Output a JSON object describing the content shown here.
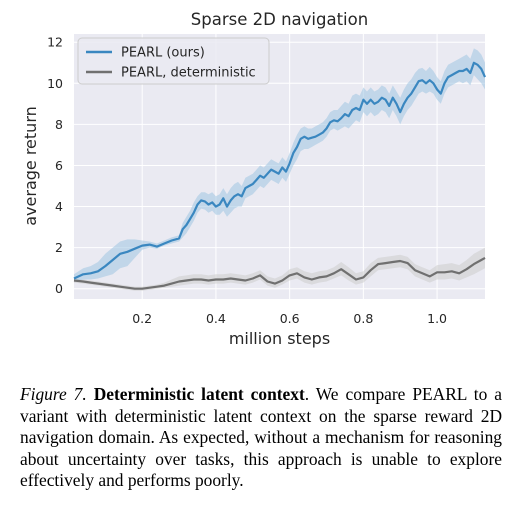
{
  "chart_data": {
    "type": "line",
    "title": "Sparse 2D navigation",
    "xlabel": "million steps",
    "ylabel": "average return",
    "xlim": [
      0.015,
      1.13
    ],
    "ylim": [
      -0.5,
      12.4
    ],
    "xticks": [
      0.2,
      0.4,
      0.6,
      0.8,
      1.0
    ],
    "xtick_labels": [
      "0.2",
      "0.4",
      "0.6",
      "0.8",
      "1.0"
    ],
    "yticks": [
      0,
      2,
      4,
      6,
      8,
      10,
      12
    ],
    "ytick_labels": [
      "0",
      "2",
      "4",
      "6",
      "8",
      "10",
      "12"
    ],
    "grid": true,
    "legend_position": "top-left",
    "background": "#eaeaf2",
    "series": [
      {
        "name": "PEARL (ours)",
        "color": "#3a87c0",
        "band_color": "#9fc4e2",
        "x": [
          0.015,
          0.04,
          0.06,
          0.08,
          0.1,
          0.12,
          0.14,
          0.16,
          0.18,
          0.2,
          0.22,
          0.24,
          0.26,
          0.28,
          0.3,
          0.31,
          0.32,
          0.33,
          0.34,
          0.35,
          0.36,
          0.37,
          0.38,
          0.39,
          0.4,
          0.41,
          0.42,
          0.43,
          0.44,
          0.45,
          0.46,
          0.47,
          0.48,
          0.49,
          0.5,
          0.51,
          0.52,
          0.53,
          0.54,
          0.55,
          0.56,
          0.57,
          0.58,
          0.59,
          0.6,
          0.61,
          0.62,
          0.63,
          0.64,
          0.65,
          0.66,
          0.67,
          0.68,
          0.69,
          0.7,
          0.71,
          0.72,
          0.73,
          0.74,
          0.75,
          0.76,
          0.77,
          0.78,
          0.79,
          0.8,
          0.81,
          0.82,
          0.83,
          0.84,
          0.85,
          0.86,
          0.87,
          0.88,
          0.89,
          0.9,
          0.91,
          0.92,
          0.93,
          0.94,
          0.95,
          0.96,
          0.97,
          0.98,
          0.99,
          1.0,
          1.01,
          1.02,
          1.03,
          1.04,
          1.05,
          1.06,
          1.07,
          1.08,
          1.09,
          1.1,
          1.11,
          1.12,
          1.13
        ],
        "y": [
          0.5,
          0.7,
          0.75,
          0.85,
          1.1,
          1.4,
          1.7,
          1.8,
          1.95,
          2.1,
          2.15,
          2.05,
          2.2,
          2.35,
          2.45,
          2.9,
          3.1,
          3.4,
          3.7,
          4.1,
          4.3,
          4.25,
          4.1,
          4.2,
          4.0,
          4.1,
          4.4,
          4.0,
          4.3,
          4.5,
          4.6,
          4.5,
          4.9,
          5.0,
          5.1,
          5.3,
          5.5,
          5.4,
          5.6,
          5.8,
          5.7,
          5.6,
          5.9,
          5.7,
          6.1,
          6.6,
          6.9,
          7.3,
          7.4,
          7.3,
          7.35,
          7.4,
          7.5,
          7.6,
          7.8,
          8.1,
          8.2,
          8.15,
          8.3,
          8.5,
          8.4,
          8.7,
          8.8,
          8.7,
          9.2,
          9.0,
          9.2,
          9.0,
          9.1,
          9.3,
          9.2,
          8.9,
          9.3,
          9.0,
          8.6,
          9.0,
          9.3,
          9.5,
          9.8,
          10.1,
          10.15,
          10.0,
          10.15,
          10.0,
          9.7,
          9.5,
          10.0,
          10.3,
          10.4,
          10.5,
          10.6,
          10.6,
          10.7,
          10.5,
          11.0,
          10.9,
          10.7,
          10.3
        ],
        "lower": [
          0.35,
          0.45,
          0.45,
          0.5,
          0.6,
          0.7,
          1.0,
          1.1,
          1.5,
          1.9,
          2.0,
          1.95,
          2.1,
          2.2,
          2.3,
          2.5,
          2.7,
          3.0,
          3.3,
          3.7,
          3.9,
          3.85,
          3.7,
          3.8,
          3.6,
          3.6,
          3.8,
          3.5,
          3.7,
          3.9,
          4.0,
          4.0,
          4.4,
          4.5,
          4.6,
          4.8,
          5.0,
          4.9,
          5.1,
          5.3,
          5.2,
          5.1,
          5.4,
          5.2,
          5.6,
          6.0,
          6.3,
          6.7,
          6.8,
          6.8,
          6.9,
          7.0,
          7.1,
          7.2,
          7.4,
          7.7,
          7.8,
          7.7,
          7.8,
          7.9,
          7.8,
          8.0,
          8.2,
          8.1,
          8.6,
          8.4,
          8.6,
          8.4,
          8.5,
          8.7,
          8.6,
          8.3,
          8.7,
          8.4,
          8.0,
          8.4,
          8.7,
          8.9,
          9.2,
          9.5,
          9.6,
          9.5,
          9.6,
          9.5,
          9.2,
          9.0,
          9.5,
          9.8,
          9.9,
          10.0,
          10.1,
          10.0,
          10.1,
          9.9,
          10.4,
          10.2,
          10.0,
          9.7
        ],
        "upper": [
          0.7,
          1.0,
          1.1,
          1.3,
          1.7,
          2.0,
          2.3,
          2.4,
          2.4,
          2.35,
          2.3,
          2.2,
          2.35,
          2.5,
          2.6,
          3.2,
          3.5,
          3.8,
          4.2,
          4.5,
          4.7,
          4.7,
          4.6,
          4.7,
          4.5,
          4.6,
          4.9,
          4.6,
          4.9,
          5.1,
          5.2,
          5.0,
          5.4,
          5.5,
          5.6,
          5.8,
          6.0,
          5.9,
          6.1,
          6.3,
          6.2,
          6.1,
          6.4,
          6.2,
          6.6,
          7.1,
          7.5,
          7.8,
          7.9,
          7.8,
          7.8,
          7.9,
          8.0,
          8.1,
          8.3,
          8.6,
          8.7,
          8.7,
          8.9,
          9.1,
          9.0,
          9.4,
          9.5,
          9.4,
          9.8,
          9.6,
          9.8,
          9.6,
          9.7,
          9.9,
          9.8,
          9.5,
          9.9,
          9.6,
          9.3,
          9.7,
          10.0,
          10.2,
          10.5,
          10.7,
          10.75,
          10.6,
          10.8,
          10.6,
          10.3,
          10.1,
          10.6,
          10.9,
          11.0,
          11.1,
          11.2,
          11.3,
          11.4,
          11.2,
          11.7,
          11.6,
          11.4,
          11.0
        ]
      },
      {
        "name": "PEARL, deterministic",
        "color": "#707070",
        "band_color": "#cccccc",
        "x": [
          0.015,
          0.04,
          0.06,
          0.08,
          0.1,
          0.12,
          0.14,
          0.16,
          0.18,
          0.2,
          0.22,
          0.24,
          0.26,
          0.28,
          0.3,
          0.32,
          0.34,
          0.36,
          0.38,
          0.4,
          0.42,
          0.44,
          0.46,
          0.48,
          0.5,
          0.52,
          0.54,
          0.56,
          0.58,
          0.6,
          0.62,
          0.64,
          0.66,
          0.68,
          0.7,
          0.72,
          0.74,
          0.76,
          0.78,
          0.8,
          0.82,
          0.84,
          0.86,
          0.88,
          0.9,
          0.92,
          0.94,
          0.96,
          0.98,
          1.0,
          1.02,
          1.04,
          1.06,
          1.08,
          1.1,
          1.12,
          1.13
        ],
        "y": [
          0.4,
          0.35,
          0.3,
          0.25,
          0.2,
          0.15,
          0.1,
          0.05,
          0.0,
          0.0,
          0.05,
          0.1,
          0.15,
          0.25,
          0.35,
          0.4,
          0.45,
          0.45,
          0.4,
          0.45,
          0.45,
          0.5,
          0.45,
          0.4,
          0.5,
          0.65,
          0.35,
          0.25,
          0.4,
          0.65,
          0.75,
          0.55,
          0.45,
          0.55,
          0.6,
          0.75,
          0.95,
          0.7,
          0.45,
          0.55,
          0.9,
          1.2,
          1.25,
          1.3,
          1.35,
          1.25,
          0.9,
          0.75,
          0.6,
          0.8,
          0.8,
          0.85,
          0.75,
          0.95,
          1.2,
          1.4,
          1.5
        ],
        "lower": [
          0.3,
          0.25,
          0.2,
          0.15,
          0.1,
          0.05,
          0.0,
          -0.05,
          -0.1,
          -0.1,
          -0.05,
          0.0,
          0.05,
          0.1,
          0.15,
          0.2,
          0.25,
          0.25,
          0.2,
          0.25,
          0.25,
          0.3,
          0.25,
          0.2,
          0.3,
          0.45,
          0.15,
          0.05,
          0.2,
          0.4,
          0.5,
          0.3,
          0.2,
          0.3,
          0.35,
          0.5,
          0.65,
          0.4,
          0.2,
          0.3,
          0.6,
          0.9,
          0.95,
          1.0,
          1.05,
          0.95,
          0.6,
          0.45,
          0.3,
          0.45,
          0.45,
          0.5,
          0.4,
          0.55,
          0.7,
          0.9,
          1.0
        ],
        "upper": [
          0.5,
          0.45,
          0.4,
          0.35,
          0.3,
          0.25,
          0.2,
          0.15,
          0.1,
          0.1,
          0.15,
          0.2,
          0.3,
          0.45,
          0.6,
          0.65,
          0.7,
          0.7,
          0.65,
          0.7,
          0.7,
          0.75,
          0.7,
          0.65,
          0.75,
          0.9,
          0.6,
          0.5,
          0.65,
          0.95,
          1.05,
          0.85,
          0.75,
          0.85,
          0.9,
          1.05,
          1.3,
          1.05,
          0.75,
          0.85,
          1.25,
          1.5,
          1.55,
          1.6,
          1.65,
          1.55,
          1.2,
          1.05,
          0.9,
          1.15,
          1.2,
          1.25,
          1.15,
          1.4,
          1.7,
          1.9,
          2.0
        ]
      }
    ]
  },
  "caption": {
    "label": "Figure 7.",
    "title": "Deterministic latent context",
    "text": ". We compare PEARL to a variant with deterministic latent context on the sparse reward 2D navigation domain. As expected, without a mechanism for reasoning about uncertainty over tasks, this approach is unable to explore effectively and performs poorly."
  }
}
